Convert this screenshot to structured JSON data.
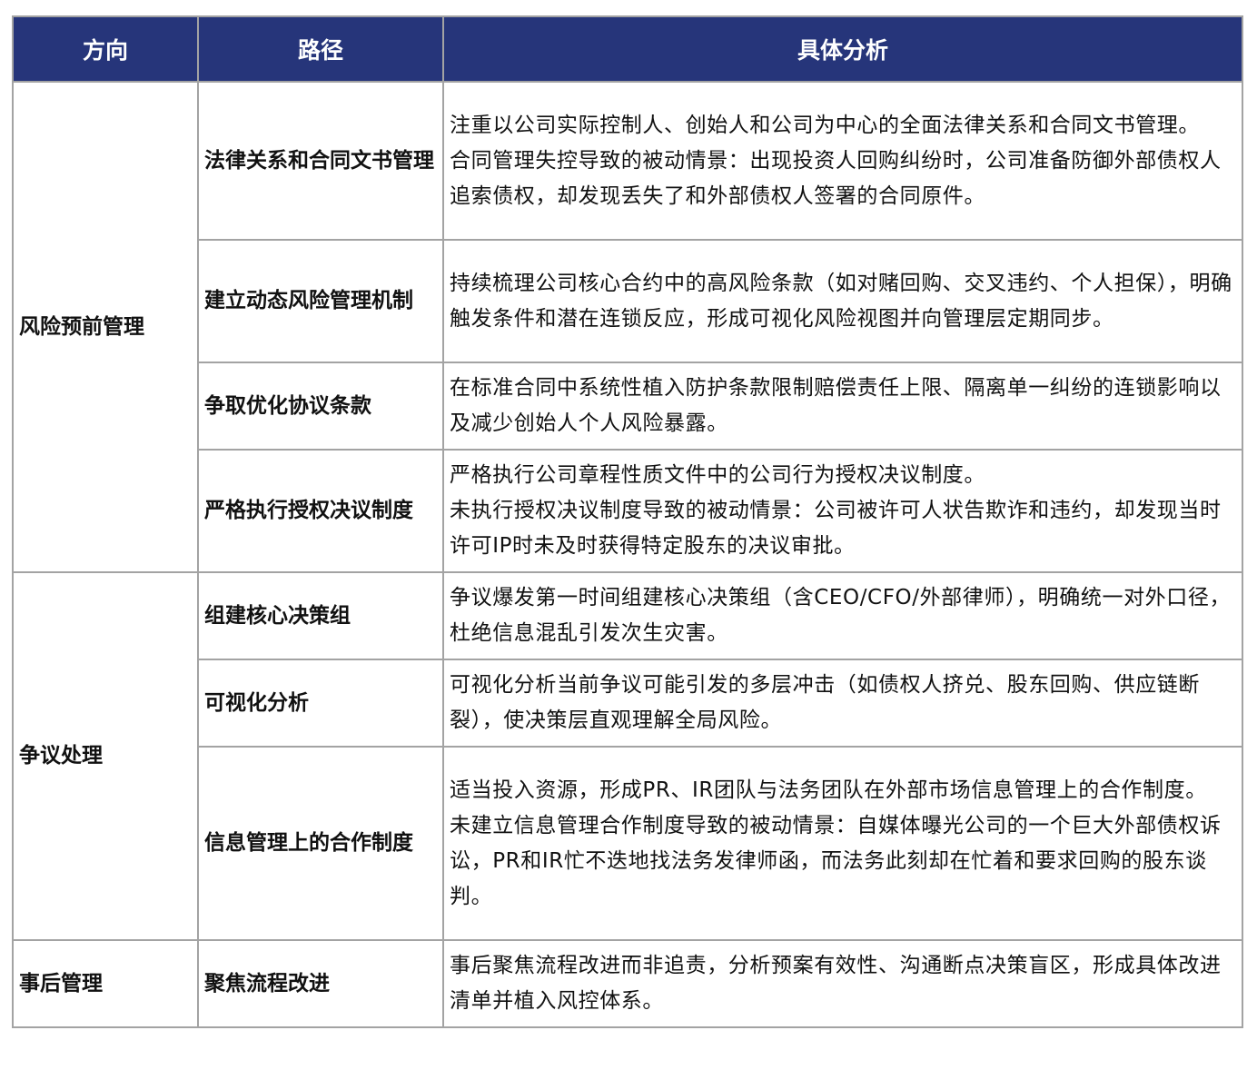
{
  "header": {
    "col1": "方向",
    "col2": "路径",
    "col3": "具体分析"
  },
  "colors": {
    "header_bg": "#26357a",
    "header_text": "#ffffff",
    "border": "#a3a3a3"
  },
  "groups": [
    {
      "direction": "风险预前管理",
      "rows": [
        {
          "path": "法律关系和合同文书管理",
          "detail": [
            "注重以公司实际控制人、创始人和公司为中心的全面法律关系和合同文书管理。",
            "合同管理失控导致的被动情景：出现投资人回购纠纷时，公司准备防御外部债权人追索债权，却发现丢失了和外部债权人签署的合同原件。"
          ]
        },
        {
          "path": "建立动态风险管理机制",
          "detail": [
            "持续梳理公司核心合约中的高风险条款（如对赌回购、交叉违约、个人担保），明确触发条件和潜在连锁反应，形成可视化风险视图并向管理层定期同步。"
          ]
        },
        {
          "path": "争取优化协议条款",
          "detail": [
            "在标准合同中系统性植入防护条款限制赔偿责任上限、隔离单一纠纷的连锁影响以及减少创始人个人风险暴露。"
          ]
        },
        {
          "path": "严格执行授权决议制度",
          "detail": [
            "严格执行公司章程性质文件中的公司行为授权决议制度。",
            "未执行授权决议制度导致的被动情景：公司被许可人状告欺诈和违约，却发现当时许可IP时未及时获得特定股东的决议审批。"
          ]
        }
      ]
    },
    {
      "direction": "争议处理",
      "rows": [
        {
          "path": "组建核心决策组",
          "detail": [
            "争议爆发第一时间组建核心决策组（含CEO/CFO/外部律师），明确统一对外口径，杜绝信息混乱引发次生灾害。"
          ]
        },
        {
          "path": "可视化分析",
          "detail": [
            "可视化分析当前争议可能引发的多层冲击（如债权人挤兑、股东回购、供应链断裂），使决策层直观理解全局风险。"
          ]
        },
        {
          "path": "信息管理上的合作制度",
          "detail": [
            "适当投入资源，形成PR、IR团队与法务团队在外部市场信息管理上的合作制度。",
            "未建立信息管理合作制度导致的被动情景：自媒体曝光公司的一个巨大外部债权诉讼，PR和IR忙不迭地找法务发律师函，而法务此刻却在忙着和要求回购的股东谈判。"
          ]
        }
      ]
    },
    {
      "direction": "事后管理",
      "rows": [
        {
          "path": "聚焦流程改进",
          "detail": [
            "事后聚焦流程改进而非追责，分析预案有效性、沟通断点决策盲区，形成具体改进清单并植入风控体系。"
          ]
        }
      ]
    }
  ]
}
